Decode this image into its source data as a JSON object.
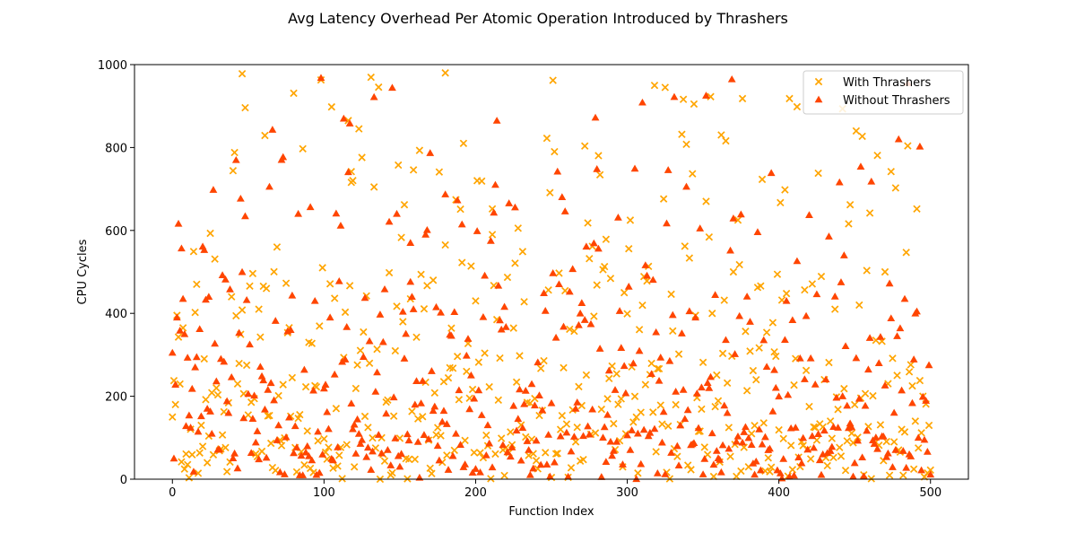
{
  "chart_data": {
    "type": "scatter",
    "title": "Avg Latency Overhead Per Atomic Operation Introduced by Thrashers",
    "xlabel": "Function Index",
    "ylabel": "CPU Cycles",
    "xlim": [
      -25,
      525
    ],
    "ylim": [
      0,
      1000
    ],
    "xticks": [
      0,
      100,
      200,
      300,
      400,
      500
    ],
    "yticks": [
      0,
      200,
      400,
      600,
      800,
      1000
    ],
    "grid": false,
    "legend": "top-right",
    "n_points": 501,
    "series": [
      {
        "name": "With Thrashers",
        "marker": "x",
        "color": "#FFA500",
        "highlights": [
          {
            "x": 46,
            "y": 978
          },
          {
            "x": 98,
            "y": 963
          },
          {
            "x": 180,
            "y": 980
          },
          {
            "x": 251,
            "y": 962
          },
          {
            "x": 325,
            "y": 945
          },
          {
            "x": 344,
            "y": 905
          },
          {
            "x": 376,
            "y": 918
          },
          {
            "x": 407,
            "y": 918
          },
          {
            "x": 48,
            "y": 896
          },
          {
            "x": 80,
            "y": 931
          },
          {
            "x": 105,
            "y": 898
          },
          {
            "x": 116,
            "y": 865
          },
          {
            "x": 123,
            "y": 845
          },
          {
            "x": 61,
            "y": 829
          },
          {
            "x": 41,
            "y": 788
          },
          {
            "x": 86,
            "y": 797
          },
          {
            "x": 125,
            "y": 776
          },
          {
            "x": 163,
            "y": 793
          },
          {
            "x": 192,
            "y": 810
          },
          {
            "x": 252,
            "y": 790
          },
          {
            "x": 365,
            "y": 816
          },
          {
            "x": 451,
            "y": 840
          },
          {
            "x": 455,
            "y": 827
          },
          {
            "x": 474,
            "y": 742
          },
          {
            "x": 426,
            "y": 738
          },
          {
            "x": 404,
            "y": 698
          },
          {
            "x": 401,
            "y": 667
          },
          {
            "x": 447,
            "y": 662
          },
          {
            "x": 491,
            "y": 652
          },
          {
            "x": 118,
            "y": 716
          },
          {
            "x": 118,
            "y": 742
          },
          {
            "x": 159,
            "y": 746
          },
          {
            "x": 176,
            "y": 741
          },
          {
            "x": 187,
            "y": 674
          },
          {
            "x": 204,
            "y": 719
          },
          {
            "x": 211,
            "y": 652
          },
          {
            "x": 211,
            "y": 590
          },
          {
            "x": 324,
            "y": 676
          },
          {
            "x": 373,
            "y": 625
          },
          {
            "x": 446,
            "y": 616
          },
          {
            "x": 460,
            "y": 642
          },
          {
            "x": 484,
            "y": 547
          },
          {
            "x": 255,
            "y": 497
          },
          {
            "x": 274,
            "y": 618
          },
          {
            "x": 180,
            "y": 565
          },
          {
            "x": 231,
            "y": 549
          },
          {
            "x": 226,
            "y": 521
          },
          {
            "x": 197,
            "y": 514
          },
          {
            "x": 151,
            "y": 583
          },
          {
            "x": 153,
            "y": 662
          },
          {
            "x": 69,
            "y": 560
          },
          {
            "x": 53,
            "y": 496
          },
          {
            "x": 28,
            "y": 531
          },
          {
            "x": 99,
            "y": 510
          },
          {
            "x": 143,
            "y": 498
          },
          {
            "x": 370,
            "y": 500
          },
          {
            "x": 388,
            "y": 466
          },
          {
            "x": 422,
            "y": 471
          },
          {
            "x": 428,
            "y": 489
          },
          {
            "x": 470,
            "y": 500
          },
          {
            "x": 3,
            "y": 395
          },
          {
            "x": 2,
            "y": 180
          },
          {
            "x": 0,
            "y": 150
          },
          {
            "x": 7,
            "y": 365
          },
          {
            "x": 39,
            "y": 440
          },
          {
            "x": 46,
            "y": 408
          },
          {
            "x": 57,
            "y": 410
          },
          {
            "x": 62,
            "y": 460
          },
          {
            "x": 90,
            "y": 330
          },
          {
            "x": 126,
            "y": 355
          },
          {
            "x": 128,
            "y": 442
          },
          {
            "x": 172,
            "y": 480
          },
          {
            "x": 200,
            "y": 430
          },
          {
            "x": 214,
            "y": 385
          },
          {
            "x": 232,
            "y": 428
          },
          {
            "x": 275,
            "y": 532
          },
          {
            "x": 300,
            "y": 399
          },
          {
            "x": 313,
            "y": 478
          },
          {
            "x": 345,
            "y": 395
          },
          {
            "x": 402,
            "y": 432
          },
          {
            "x": 437,
            "y": 410
          },
          {
            "x": 453,
            "y": 420
          },
          {
            "x": 495,
            "y": 200
          },
          {
            "x": 498,
            "y": 15
          },
          {
            "x": 500,
            "y": 22
          },
          {
            "x": 490,
            "y": 140
          },
          {
            "x": 488,
            "y": 225
          },
          {
            "x": 481,
            "y": 120
          }
        ]
      },
      {
        "name": "Without Thrashers",
        "marker": "^",
        "color": "#FF4500",
        "highlights": [
          {
            "x": 98,
            "y": 968
          },
          {
            "x": 117,
            "y": 858
          },
          {
            "x": 479,
            "y": 820
          },
          {
            "x": 454,
            "y": 754
          },
          {
            "x": 461,
            "y": 718
          },
          {
            "x": 254,
            "y": 742
          },
          {
            "x": 280,
            "y": 748
          },
          {
            "x": 305,
            "y": 749
          },
          {
            "x": 213,
            "y": 710
          },
          {
            "x": 212,
            "y": 643
          },
          {
            "x": 259,
            "y": 646
          },
          {
            "x": 326,
            "y": 617
          },
          {
            "x": 420,
            "y": 637
          },
          {
            "x": 386,
            "y": 596
          },
          {
            "x": 168,
            "y": 601
          },
          {
            "x": 157,
            "y": 570
          },
          {
            "x": 148,
            "y": 640
          },
          {
            "x": 20,
            "y": 561
          },
          {
            "x": 21,
            "y": 553
          },
          {
            "x": 264,
            "y": 507
          },
          {
            "x": 278,
            "y": 569
          },
          {
            "x": 281,
            "y": 556
          },
          {
            "x": 273,
            "y": 561
          },
          {
            "x": 312,
            "y": 516
          },
          {
            "x": 313,
            "y": 491
          },
          {
            "x": 412,
            "y": 526
          },
          {
            "x": 441,
            "y": 475
          },
          {
            "x": 443,
            "y": 540
          },
          {
            "x": 33,
            "y": 492
          },
          {
            "x": 7,
            "y": 435
          },
          {
            "x": 38,
            "y": 458
          },
          {
            "x": 79,
            "y": 443
          },
          {
            "x": 94,
            "y": 430
          },
          {
            "x": 157,
            "y": 476
          },
          {
            "x": 158,
            "y": 440
          },
          {
            "x": 167,
            "y": 590
          },
          {
            "x": 174,
            "y": 415
          },
          {
            "x": 205,
            "y": 391
          },
          {
            "x": 246,
            "y": 406
          },
          {
            "x": 270,
            "y": 425
          },
          {
            "x": 276,
            "y": 374
          },
          {
            "x": 330,
            "y": 396
          },
          {
            "x": 345,
            "y": 390
          },
          {
            "x": 405,
            "y": 430
          },
          {
            "x": 3,
            "y": 390
          },
          {
            "x": 0,
            "y": 305
          },
          {
            "x": 1,
            "y": 50
          },
          {
            "x": 2,
            "y": 228
          },
          {
            "x": 8,
            "y": 350
          },
          {
            "x": 18,
            "y": 362
          },
          {
            "x": 44,
            "y": 353
          },
          {
            "x": 68,
            "y": 382
          },
          {
            "x": 104,
            "y": 390
          },
          {
            "x": 115,
            "y": 367
          },
          {
            "x": 126,
            "y": 295
          },
          {
            "x": 130,
            "y": 333
          },
          {
            "x": 137,
            "y": 397
          },
          {
            "x": 152,
            "y": 404
          },
          {
            "x": 473,
            "y": 472
          },
          {
            "x": 474,
            "y": 388
          },
          {
            "x": 480,
            "y": 364
          },
          {
            "x": 499,
            "y": 275
          },
          {
            "x": 487,
            "y": 55
          },
          {
            "x": 496,
            "y": 95
          },
          {
            "x": 486,
            "y": 60
          },
          {
            "x": 492,
            "y": 100
          },
          {
            "x": 478,
            "y": 345
          },
          {
            "x": 466,
            "y": 280
          }
        ]
      }
    ]
  }
}
